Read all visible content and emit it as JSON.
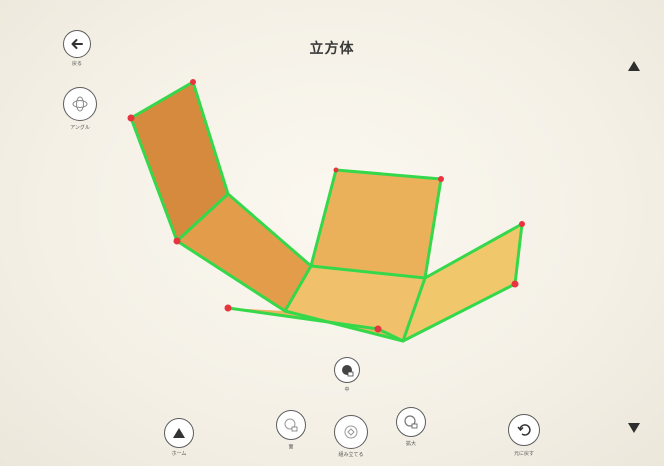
{
  "header": {
    "title": "立方体"
  },
  "toolbar_left": {
    "back_label": "戻る",
    "view_label": "アングル"
  },
  "bottom_bar": {
    "home_label": "ホーム",
    "face_label": "面",
    "fold_label": "組み立てる",
    "zoom_label": "拡大",
    "reset_label": "元に戻す",
    "center_label": "中"
  },
  "colors": {
    "edge": "#35d84a",
    "vertex": "#e8343e",
    "face_dark": "#d58a3e",
    "face_mid": "#e7a552",
    "face_light": "#f0c46a"
  },
  "icons": {
    "back": "arrow-left-icon",
    "scroll_up": "triangle-up-icon",
    "scroll_down": "triangle-down-icon"
  }
}
